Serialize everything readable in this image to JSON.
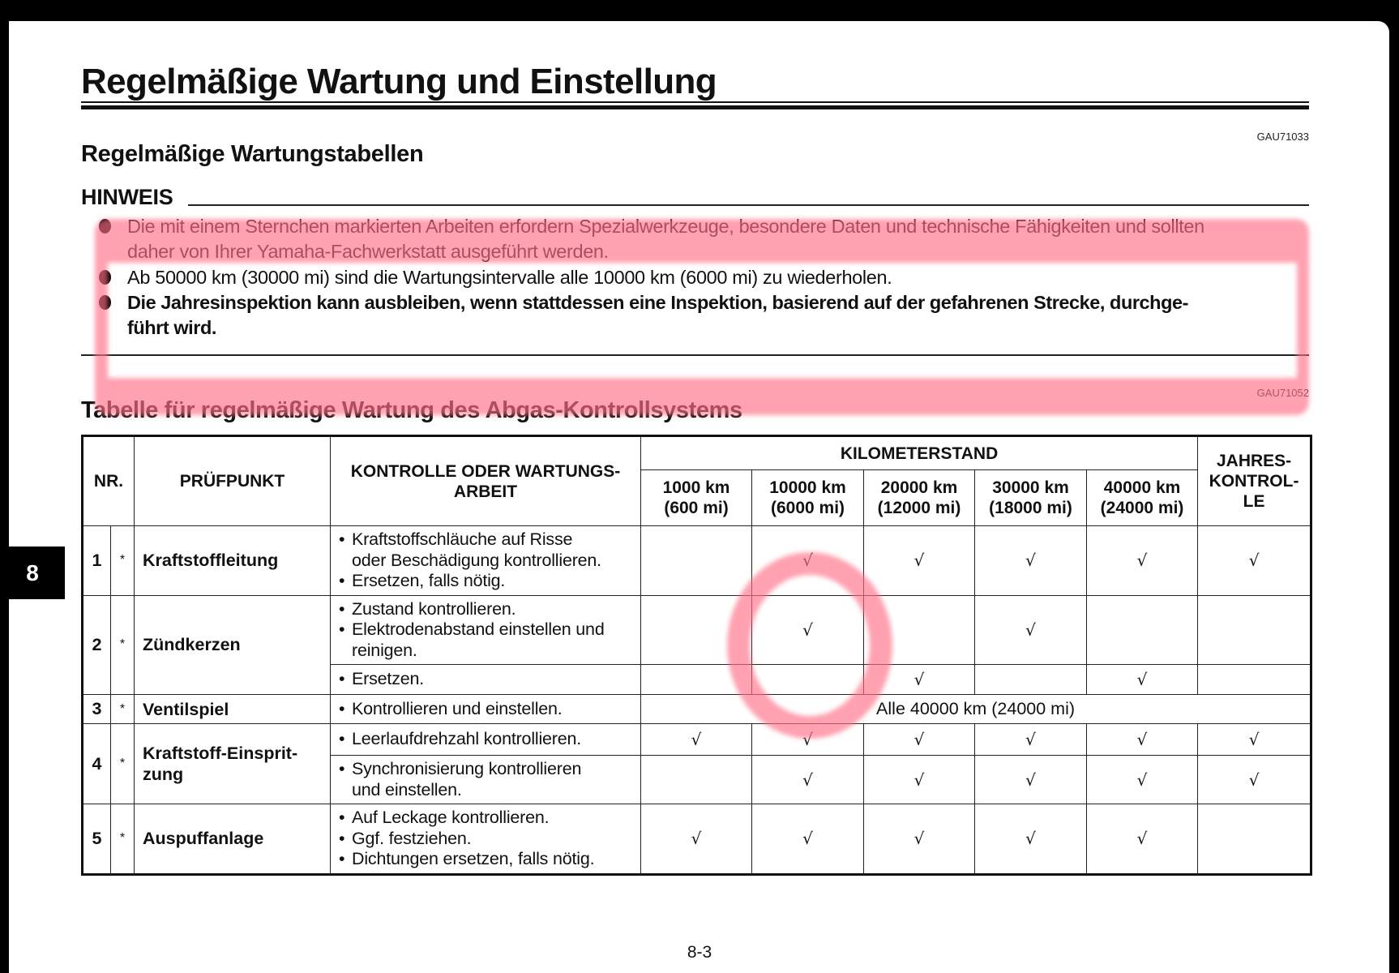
{
  "title": "Regelmäßige Wartung und Einstellung",
  "section_code": "GAU71033",
  "subtitle": "Regelmäßige Wartungstabellen",
  "hinweis": {
    "heading": "HINWEIS",
    "items": [
      "Die mit einem Sternchen markierten Arbeiten erfordern Spezialwerkzeuge, besondere Daten und technische Fähigkeiten und sollten\ndaher von Ihrer Yamaha-Fachwerkstatt ausgeführt werden.",
      "Ab 50000 km (30000 mi) sind die Wartungsintervalle alle 10000 km (6000 mi) zu wiederholen.",
      "Die Jahresinspektion kann ausbleiben, wenn stattdessen eine Inspektion, basierend auf der gefahrenen Strecke, durchge-\nführt wird."
    ]
  },
  "table_code": "GAU71052",
  "table_title": "Tabelle für regelmäßige Wartung des Abgas-Kontrollsystems",
  "table": {
    "headers": {
      "nr": "NR.",
      "item": "PRÜFPUNKT",
      "task": "KONTROLLE ODER WARTUNGS-\nARBEIT",
      "odometer": "KILOMETERSTAND",
      "annual": "JAHRES-\nKONTROL-\nLE",
      "intervals": [
        "1000 km\n(600 mi)",
        "10000 km\n(6000 mi)",
        "20000 km\n(12000 mi)",
        "30000 km\n(18000 mi)",
        "40000 km\n(24000 mi)"
      ]
    },
    "check_symbol": "√",
    "rows": [
      {
        "nr": "1",
        "star": "*",
        "item": "Kraftstoffleitung",
        "subrows": [
          {
            "tasks": [
              "Kraftstoffschläuche auf Risse\noder Beschädigung kontrollieren.",
              "Ersetzen, falls nötig."
            ],
            "checks": [
              false,
              true,
              true,
              true,
              true,
              true
            ]
          }
        ]
      },
      {
        "nr": "2",
        "star": "*",
        "item": "Zündkerzen",
        "subrows": [
          {
            "tasks": [
              "Zustand kontrollieren.",
              "Elektrodenabstand einstellen und\nreinigen."
            ],
            "checks": [
              false,
              true,
              false,
              true,
              false,
              false
            ]
          },
          {
            "tasks": [
              "Ersetzen."
            ],
            "checks": [
              false,
              false,
              true,
              false,
              true,
              false
            ]
          }
        ]
      },
      {
        "nr": "3",
        "star": "*",
        "item": "Ventilspiel",
        "subrows": [
          {
            "tasks": [
              "Kontrollieren und einstellen."
            ],
            "span_text": "Alle 40000 km (24000 mi)"
          }
        ]
      },
      {
        "nr": "4",
        "star": "*",
        "item": "Kraftstoff-Einsprit-\nzung",
        "subrows": [
          {
            "tasks": [
              "Leerlaufdrehzahl kontrollieren."
            ],
            "checks": [
              true,
              true,
              true,
              true,
              true,
              true
            ]
          },
          {
            "tasks": [
              "Synchronisierung kontrollieren\nund einstellen."
            ],
            "checks": [
              false,
              true,
              true,
              true,
              true,
              true
            ]
          }
        ]
      },
      {
        "nr": "5",
        "star": "*",
        "item": "Auspuffanlage",
        "subrows": [
          {
            "tasks": [
              "Auf Leckage kontrollieren.",
              "Ggf. festziehen.",
              "Dichtungen ersetzen, falls nötig."
            ],
            "checks": [
              true,
              true,
              true,
              true,
              true,
              false
            ]
          }
        ]
      }
    ]
  },
  "side_tab": "8",
  "page_number": "8-3",
  "annotation_color": "#ff6f86"
}
